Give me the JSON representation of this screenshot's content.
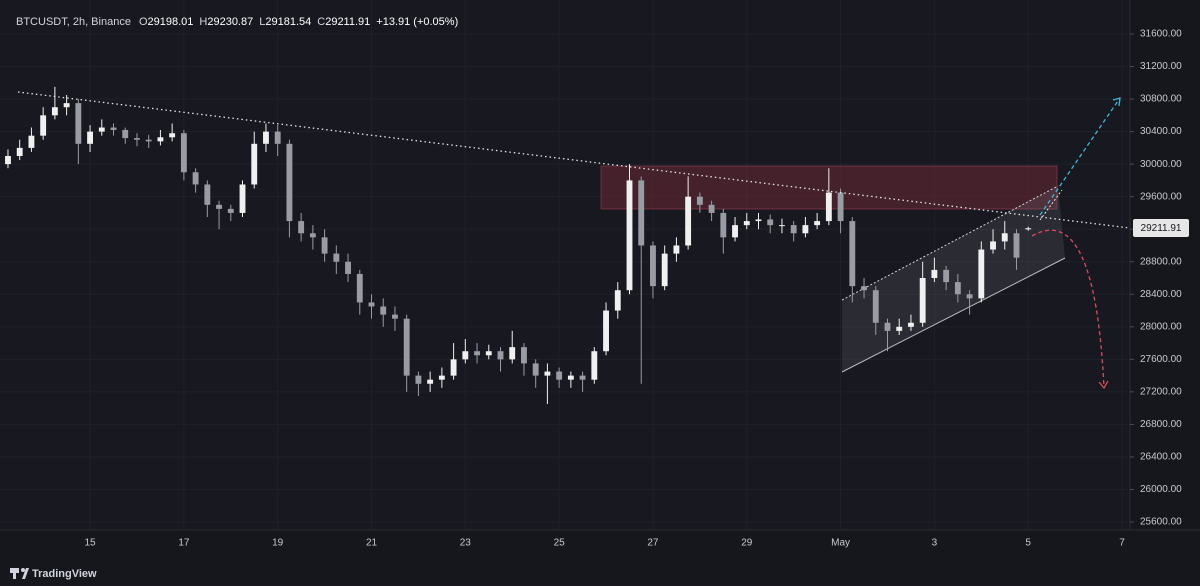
{
  "chart_data": {
    "type": "candlestick",
    "header": {
      "symbol": "BTCUSDT, 2h, Binance",
      "ohlc_labels": [
        "O",
        "H",
        "L",
        "C"
      ],
      "change": "+13.91 (+0.05%)"
    },
    "brand": "TradingView",
    "up_color": "#f0f0f0",
    "down_color": "#9a9ca3",
    "x": [
      13.25,
      13.5,
      13.75,
      14,
      14.25,
      14.5,
      14.75,
      15,
      15.25,
      15.5,
      15.75,
      16,
      16.25,
      16.5,
      16.75,
      17,
      17.25,
      17.5,
      17.75,
      18,
      18.25,
      18.5,
      18.75,
      19,
      19.25,
      19.5,
      19.75,
      20,
      20.25,
      20.5,
      20.75,
      21,
      21.25,
      21.5,
      21.75,
      22,
      22.25,
      22.5,
      22.75,
      23,
      23.25,
      23.5,
      23.75,
      24,
      24.25,
      24.5,
      24.75,
      25,
      25.25,
      25.5,
      25.75,
      26,
      26.25,
      26.5,
      26.75,
      27,
      27.25,
      27.5,
      27.75,
      28,
      28.25,
      28.5,
      28.75,
      29,
      29.25,
      29.5,
      29.75,
      30,
      30.25,
      30.5,
      30.75,
      31,
      31.25,
      31.5,
      31.75,
      32,
      32.25,
      32.5,
      32.75,
      33,
      33.25,
      33.5,
      33.75,
      34,
      34.25,
      34.5,
      34.75,
      35
    ],
    "open": [
      30000,
      30100,
      30200,
      30350,
      30600,
      30700,
      30750,
      30250,
      30400,
      30450,
      30420,
      30320,
      30300,
      30280,
      30330,
      30380,
      29900,
      29750,
      29500,
      29450,
      29400,
      29750,
      30250,
      30400,
      30250,
      29300,
      29150,
      29100,
      28900,
      28800,
      28650,
      28300,
      28250,
      28150,
      28100,
      27400,
      27300,
      27350,
      27400,
      27600,
      27700,
      27650,
      27700,
      27600,
      27750,
      27550,
      27400,
      27450,
      27350,
      27400,
      27350,
      27700,
      28200,
      28450,
      29800,
      29000,
      28500,
      28900,
      29000,
      29600,
      29500,
      29400,
      29100,
      29250,
      29300,
      29320,
      29250,
      29250,
      29150,
      29250,
      29300,
      29650,
      29300,
      28500,
      28450,
      28050,
      27950,
      28000,
      28050,
      28600,
      28700,
      28550,
      28400,
      28350,
      28950,
      29050,
      29150,
      29198.01
    ],
    "high": [
      30180,
      30300,
      30450,
      30700,
      30950,
      30850,
      30800,
      30480,
      30550,
      30500,
      30450,
      30380,
      30360,
      30420,
      30500,
      30420,
      29950,
      29800,
      29550,
      29500,
      29800,
      30400,
      30500,
      30480,
      30300,
      29400,
      29250,
      29200,
      29000,
      28900,
      28700,
      28400,
      28350,
      28250,
      28150,
      27450,
      27450,
      27500,
      27800,
      27850,
      27800,
      27780,
      27750,
      27950,
      27800,
      27600,
      27550,
      27500,
      27450,
      27450,
      27750,
      28300,
      28550,
      30000,
      29850,
      29050,
      29000,
      29100,
      29850,
      29650,
      29550,
      29450,
      29350,
      29400,
      29400,
      29380,
      29330,
      29300,
      29350,
      29400,
      29950,
      29700,
      29350,
      28600,
      28500,
      28100,
      28100,
      28150,
      28800,
      28850,
      28750,
      28650,
      28450,
      29050,
      29200,
      29300,
      29200,
      29230.87
    ],
    "low": [
      29950,
      30050,
      30150,
      30300,
      30550,
      30600,
      30000,
      30150,
      30350,
      30350,
      30250,
      30220,
      30200,
      30230,
      30280,
      29800,
      29650,
      29350,
      29200,
      29300,
      29350,
      29700,
      30150,
      30100,
      29100,
      29050,
      28950,
      28800,
      28650,
      28550,
      28150,
      28100,
      28000,
      27950,
      27200,
      27150,
      27200,
      27250,
      27350,
      27550,
      27550,
      27600,
      27450,
      27550,
      27400,
      27250,
      27050,
      27250,
      27250,
      27200,
      27300,
      27650,
      28100,
      28400,
      27300,
      28350,
      28450,
      28800,
      28950,
      29400,
      29300,
      28900,
      29050,
      29200,
      29200,
      29150,
      29150,
      29050,
      29100,
      29200,
      29250,
      29150,
      28300,
      28350,
      27900,
      27700,
      27900,
      27950,
      28000,
      28550,
      28450,
      28300,
      28150,
      28300,
      28900,
      28950,
      28700,
      29181.54
    ],
    "close": [
      30100,
      30200,
      30350,
      30600,
      30700,
      30750,
      30250,
      30400,
      30450,
      30420,
      30320,
      30300,
      30280,
      30330,
      30380,
      29900,
      29750,
      29500,
      29450,
      29400,
      29750,
      30250,
      30400,
      30250,
      29300,
      29150,
      29100,
      28900,
      28800,
      28650,
      28300,
      28250,
      28150,
      28100,
      27400,
      27300,
      27350,
      27400,
      27600,
      27700,
      27650,
      27700,
      27600,
      27750,
      27550,
      27400,
      27450,
      27350,
      27400,
      27350,
      27700,
      28200,
      28450,
      29800,
      29000,
      28500,
      28900,
      29000,
      29600,
      29500,
      29400,
      29100,
      29250,
      29300,
      29320,
      29250,
      29250,
      29150,
      29250,
      29300,
      29650,
      29300,
      28500,
      28450,
      28050,
      27950,
      28000,
      28050,
      28600,
      28700,
      28550,
      28400,
      28350,
      28950,
      29050,
      29150,
      28850,
      29211.91
    ],
    "xlim": [
      13.08,
      37.17
    ],
    "xticks": [
      15,
      17,
      19,
      21,
      23,
      25,
      27,
      29,
      {
        "value": 31,
        "label": "May"
      },
      {
        "value": 33,
        "label": "3"
      },
      {
        "value": 35,
        "label": "5"
      },
      {
        "value": 37,
        "label": "7"
      }
    ],
    "ylim": [
      25502,
      32018
    ],
    "yticks": [
      {
        "value": 25600,
        "label": "25600.00"
      },
      {
        "value": 26000,
        "label": "26000.00"
      },
      {
        "value": 26400,
        "label": "26400.00"
      },
      {
        "value": 26800,
        "label": "26800.00"
      },
      {
        "value": 27200,
        "label": "27200.00"
      },
      {
        "value": 27600,
        "label": "27600.00"
      },
      {
        "value": 28000,
        "label": "28000.00"
      },
      {
        "value": 28400,
        "label": "28400.00"
      },
      {
        "value": 28800,
        "label": "28800.00"
      },
      {
        "value": 29200,
        "label": "29200.00"
      },
      {
        "value": 29600,
        "label": "29600.00"
      },
      {
        "value": 30000,
        "label": "30000.00"
      },
      {
        "value": 30400,
        "label": "30400.00"
      },
      {
        "value": 30800,
        "label": "30800.00"
      },
      {
        "value": 31200,
        "label": "31200.00"
      },
      {
        "value": 31600,
        "label": "31600.00"
      }
    ]
  }
}
